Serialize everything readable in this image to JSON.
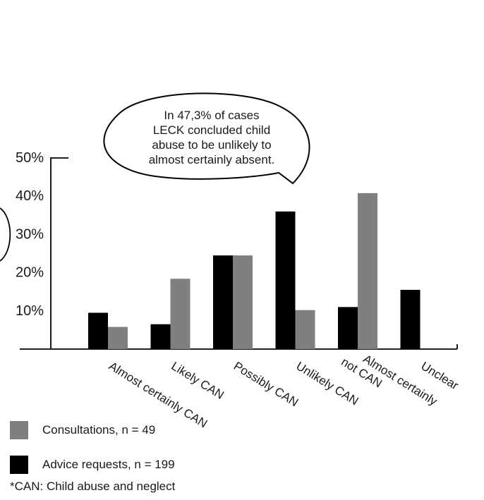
{
  "chart_data": {
    "type": "bar",
    "title": "",
    "categories": [
      "Almost certainly CAN",
      "Likely CAN",
      "Possibly CAN",
      "Unlikely CAN",
      "Almost certainly\nnot CAN",
      "Unclear"
    ],
    "series": [
      {
        "name": "Advice requests, n = 199",
        "values": [
          9.5,
          6.5,
          24.5,
          36.0,
          11.0,
          15.5
        ],
        "color": "#000000"
      },
      {
        "name": "Consultations, n = 49",
        "values": [
          5.8,
          18.4,
          24.5,
          10.2,
          40.8,
          0
        ],
        "color": "#7f7f7f"
      }
    ],
    "ylim": [
      0,
      50
    ],
    "yticks": [
      {
        "value": 10,
        "label": "10%"
      },
      {
        "value": 20,
        "label": "20%"
      },
      {
        "value": 30,
        "label": "30%"
      },
      {
        "value": 40,
        "label": "40%"
      },
      {
        "value": 50,
        "label": "50%"
      }
    ],
    "grid": false,
    "legend_position": "bottom-left",
    "annotation": "In 47,3% of cases\nLECK concluded child\nabuse to be unlikely to\nalmost certainly absent.",
    "footnote": "*CAN: Child abuse and neglect"
  }
}
